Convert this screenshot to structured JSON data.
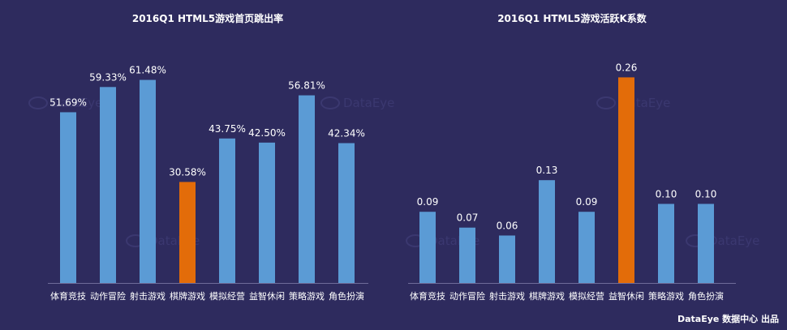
{
  "chart_data": [
    {
      "type": "bar",
      "title": "2016Q1 HTML5游戏首页跳出率",
      "categories": [
        "体育竞技",
        "动作冒险",
        "射击游戏",
        "棋牌游戏",
        "模拟经营",
        "益智休闲",
        "策略游戏",
        "角色扮演"
      ],
      "values": [
        51.69,
        59.33,
        61.48,
        30.58,
        43.75,
        42.5,
        56.81,
        42.34
      ],
      "value_labels": [
        "51.69%",
        "59.33%",
        "61.48%",
        "30.58%",
        "43.75%",
        "42.50%",
        "56.81%",
        "42.34%"
      ],
      "highlight_index": 3,
      "ylim": [
        0,
        68
      ]
    },
    {
      "type": "bar",
      "title": "2016Q1 HTML5游戏活跃K系数",
      "categories": [
        "体育竞技",
        "动作冒险",
        "射击游戏",
        "棋牌游戏",
        "模拟经营",
        "益智休闲",
        "策略游戏",
        "角色扮演"
      ],
      "values": [
        0.09,
        0.07,
        0.06,
        0.13,
        0.09,
        0.26,
        0.1,
        0.1
      ],
      "value_labels": [
        "0.09",
        "0.07",
        "0.06",
        "0.13",
        "0.09",
        "0.26",
        "0.10",
        "0.10"
      ],
      "highlight_index": 5,
      "ylim": [
        0,
        0.284
      ]
    }
  ],
  "colors": {
    "background": "#2e2b5e",
    "bar": "#5b9bd5",
    "highlight": "#e36c09",
    "axis": "#6f6c99"
  },
  "watermark": "DataEye",
  "footer": "DataEye 数据中心 出品"
}
